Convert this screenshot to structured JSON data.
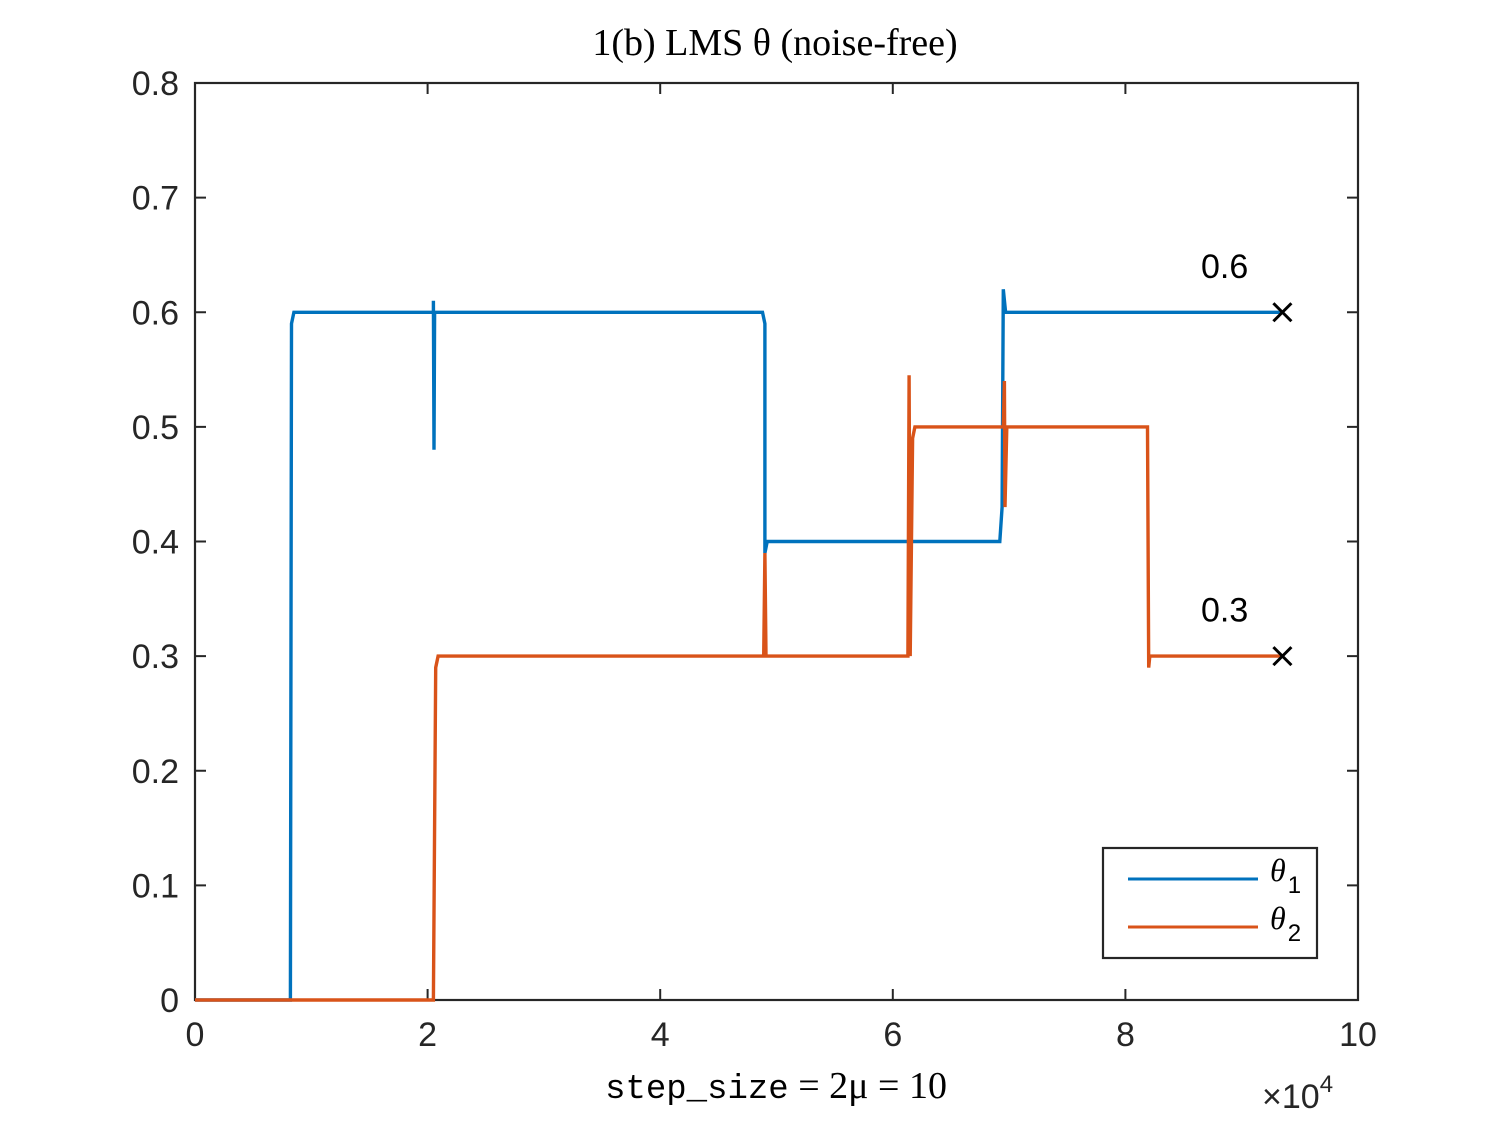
{
  "chart_data": {
    "type": "line",
    "title": "1(b) LMS θ (noise-free)",
    "xlabel": "step_size = 2μ = 10",
    "xlabel_parts": {
      "mono": "step_size",
      "math": " = 2μ = 10"
    },
    "x_exponent_label": "×10",
    "x_exponent_power": "4",
    "xlim": [
      0,
      100000
    ],
    "ylim": [
      0,
      0.8
    ],
    "x_ticks": [
      0,
      20000,
      40000,
      60000,
      80000,
      100000
    ],
    "x_tick_labels": [
      "0",
      "2",
      "4",
      "6",
      "8",
      "10"
    ],
    "y_ticks": [
      0,
      0.1,
      0.2,
      0.3,
      0.4,
      0.5,
      0.6,
      0.7,
      0.8
    ],
    "y_tick_labels": [
      "0",
      "0.1",
      "0.2",
      "0.3",
      "0.4",
      "0.5",
      "0.6",
      "0.7",
      "0.8"
    ],
    "legend_position": "bottom-right",
    "grid": false,
    "series": [
      {
        "name": "θ1",
        "legend_symbol": "θ",
        "legend_sub": "1",
        "color": "#0072BD",
        "points": [
          [
            0,
            0
          ],
          [
            8200,
            0
          ],
          [
            8300,
            0.59
          ],
          [
            8500,
            0.6
          ],
          [
            20500,
            0.6
          ],
          [
            20500,
            0.61
          ],
          [
            20550,
            0.48
          ],
          [
            20600,
            0.6
          ],
          [
            48800,
            0.6
          ],
          [
            49000,
            0.59
          ],
          [
            49000,
            0.39
          ],
          [
            49200,
            0.4
          ],
          [
            69200,
            0.4
          ],
          [
            69400,
            0.43
          ],
          [
            69500,
            0.62
          ],
          [
            69700,
            0.6
          ],
          [
            93500,
            0.6
          ]
        ]
      },
      {
        "name": "θ2",
        "legend_symbol": "θ",
        "legend_sub": "2",
        "color": "#D95319",
        "points": [
          [
            0,
            0
          ],
          [
            20500,
            0
          ],
          [
            20700,
            0.29
          ],
          [
            20900,
            0.3
          ],
          [
            48900,
            0.3
          ],
          [
            49000,
            0.39
          ],
          [
            49100,
            0.3
          ],
          [
            61300,
            0.3
          ],
          [
            61400,
            0.545
          ],
          [
            61500,
            0.3
          ],
          [
            61700,
            0.49
          ],
          [
            61900,
            0.5
          ],
          [
            69500,
            0.5
          ],
          [
            69600,
            0.54
          ],
          [
            69650,
            0.43
          ],
          [
            69800,
            0.5
          ],
          [
            81900,
            0.5
          ],
          [
            82000,
            0.29
          ],
          [
            82100,
            0.3
          ],
          [
            93500,
            0.3
          ]
        ]
      }
    ],
    "markers": [
      {
        "x": 93500,
        "y": 0.6,
        "symbol": "x"
      },
      {
        "x": 93500,
        "y": 0.3,
        "symbol": "x"
      }
    ],
    "annotations": [
      {
        "text": "0.6",
        "x": 86500,
        "y": 0.63
      },
      {
        "text": "0.3",
        "x": 86500,
        "y": 0.33
      }
    ]
  }
}
